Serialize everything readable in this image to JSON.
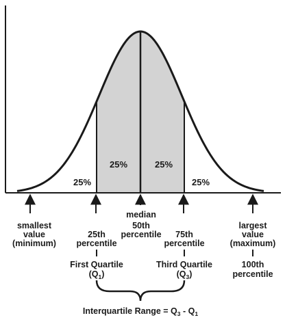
{
  "regions": {
    "lower_tail": "25%",
    "second_quarter": "25%",
    "third_quarter": "25%",
    "upper_tail": "25%"
  },
  "markers": {
    "minimum": [
      "smallest",
      "value",
      "(minimum)"
    ],
    "q1": [
      "25th",
      "percentile"
    ],
    "median": [
      "median",
      "50th",
      "percentile"
    ],
    "q3": [
      "75th",
      "percentile"
    ],
    "maximum": [
      "largest",
      "value",
      "(maximum)"
    ]
  },
  "quartiles": {
    "first": {
      "name": "First Quartile",
      "symbol": "Q",
      "sub": "1"
    },
    "third": {
      "name": "Third Quartile",
      "symbol": "Q",
      "sub": "3"
    },
    "max_percentile": [
      "100th",
      "percentile"
    ]
  },
  "iqr": {
    "label": "Interquartile Range = ",
    "q3": "Q",
    "q3_sub": "3",
    "minus": " - ",
    "q1": "Q",
    "q1_sub": "1"
  },
  "colors": {
    "shade": "#d3d3d3",
    "ink": "#1a1a1a"
  }
}
